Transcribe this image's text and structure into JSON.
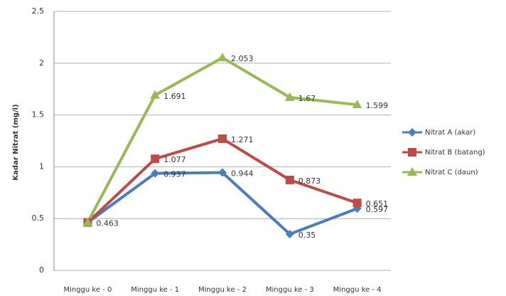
{
  "chart_data": {
    "type": "line",
    "y_label": "Kadar Nitrat (mg/l)",
    "categories": [
      "Minggu ke - 0",
      "Minggu ke - 1",
      "Minggu ke - 2",
      "Minggu ke - 3",
      "Minggu ke - 4"
    ],
    "series": [
      {
        "name": "Nitrat A (akar)",
        "color": "#4a7ebb",
        "marker": "diamond",
        "values": [
          0.463,
          0.937,
          0.944,
          0.35,
          0.597
        ],
        "value_labels": [
          "0.463",
          "0.937",
          "0.944",
          "0.35",
          "0.597"
        ]
      },
      {
        "name": "Nitrat B (batang)",
        "color": "#be4b48",
        "marker": "square",
        "values": [
          0.463,
          1.077,
          1.271,
          0.873,
          0.651
        ],
        "value_labels": [
          null,
          "1.077",
          "1.271",
          "0.873",
          "0.651"
        ]
      },
      {
        "name": "Nitrat C (daun)",
        "color": "#98b954",
        "marker": "triangle",
        "values": [
          0.463,
          1.691,
          2.053,
          1.67,
          1.599
        ],
        "value_labels": [
          null,
          "1.691",
          "2.053",
          "1.67",
          "1.599"
        ]
      }
    ],
    "ylim": [
      0,
      2.5
    ],
    "yticks": [
      0,
      0.5,
      1,
      1.5,
      2,
      2.5
    ],
    "grid": true,
    "legend": "right"
  }
}
